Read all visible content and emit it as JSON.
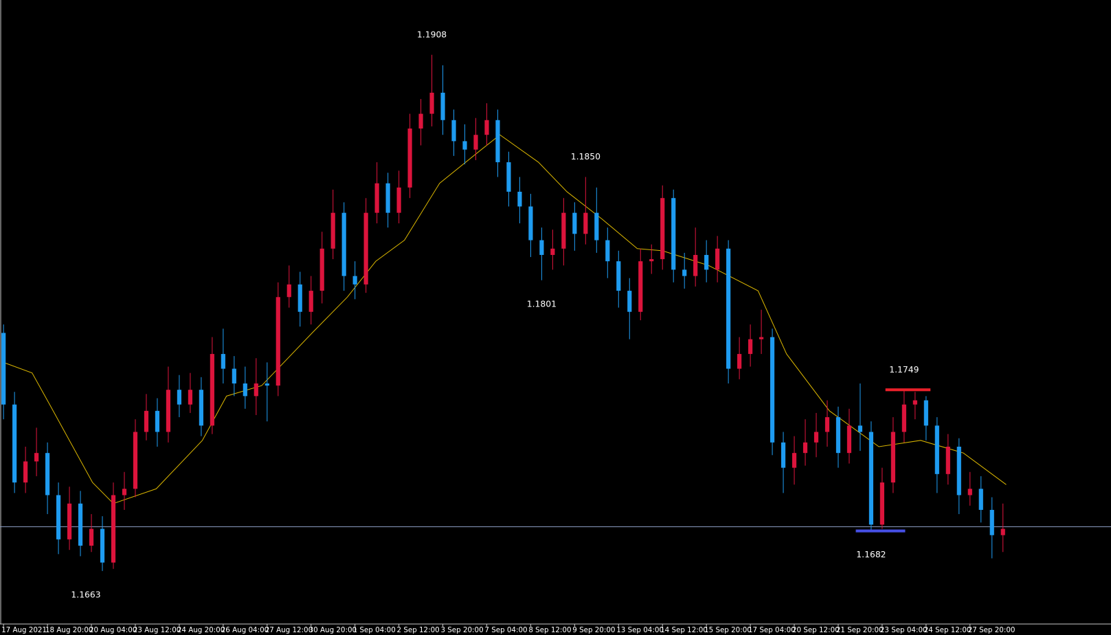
{
  "chart_data": {
    "type": "candlestick",
    "categories": [
      "17 Aug 2021",
      null,
      null,
      null,
      "18 Aug 20:00",
      null,
      null,
      null,
      "20 Aug 04:00",
      null,
      null,
      null,
      "23 Aug 12:00",
      null,
      null,
      null,
      "24 Aug 20:00",
      null,
      null,
      null,
      "26 Aug 04:00",
      null,
      null,
      null,
      "27 Aug 12:00",
      null,
      null,
      null,
      "30 Aug 20:00",
      null,
      null,
      null,
      "1 Sep 04:00",
      null,
      null,
      null,
      "2 Sep 12:00",
      null,
      null,
      null,
      "3 Sep 20:00",
      null,
      null,
      null,
      "7 Sep 04:00",
      null,
      null,
      null,
      "8 Sep 12:00",
      null,
      null,
      null,
      "9 Sep 20:00",
      null,
      null,
      null,
      "13 Sep 04:00",
      null,
      null,
      null,
      "14 Sep 12:00",
      null,
      null,
      null,
      "15 Sep 20:00",
      null,
      null,
      null,
      "17 Sep 04:00",
      null,
      null,
      null,
      "20 Sep 12:00",
      null,
      null,
      null,
      "21 Sep 20:00",
      null,
      null,
      null,
      "23 Sep 04:00",
      null,
      null,
      null,
      "24 Sep 12:00",
      null,
      null,
      null,
      "27 Sep 20:00",
      null,
      null,
      null
    ],
    "open": [
      1.1776,
      1.1742,
      1.1705,
      1.1715,
      1.1719,
      1.1699,
      1.1678,
      1.1695,
      1.1675,
      1.1683,
      1.1667,
      1.1699,
      1.1702,
      1.1729,
      1.1739,
      1.1729,
      1.1749,
      1.1742,
      1.1749,
      1.1732,
      1.1766,
      1.1759,
      1.1752,
      1.1746,
      1.1752,
      1.1751,
      1.1793,
      1.1799,
      1.1786,
      1.1796,
      1.1816,
      1.1833,
      1.1803,
      1.1799,
      1.1833,
      1.1847,
      1.1833,
      1.1845,
      1.1873,
      1.188,
      1.189,
      1.1877,
      1.1867,
      1.1863,
      1.187,
      1.1877,
      1.1857,
      1.1843,
      1.1836,
      1.182,
      1.1813,
      1.1816,
      1.1833,
      1.1823,
      1.1833,
      1.182,
      1.181,
      1.1796,
      1.1786,
      1.181,
      1.1811,
      1.184,
      1.1806,
      1.1803,
      1.1813,
      1.1806,
      1.1816,
      1.1759,
      1.1766,
      1.1773,
      1.1774,
      1.1724,
      1.1712,
      1.1719,
      1.1724,
      1.1729,
      1.1736,
      1.1719,
      1.1732,
      1.1729,
      1.1685,
      1.1705,
      1.1729,
      1.1742,
      1.1744,
      1.1732,
      1.1709,
      1.1722,
      1.1699,
      1.1702,
      1.1692,
      1.168
    ],
    "high": [
      1.178,
      1.1748,
      1.1722,
      1.1731,
      1.1724,
      1.1705,
      1.1703,
      1.1701,
      1.169,
      1.1689,
      1.1705,
      1.171,
      1.1735,
      1.1747,
      1.1745,
      1.176,
      1.1756,
      1.1757,
      1.1755,
      1.1774,
      1.1778,
      1.1765,
      1.176,
      1.1764,
      1.1762,
      1.18,
      1.1808,
      1.1805,
      1.1803,
      1.1824,
      1.1844,
      1.1838,
      1.181,
      1.184,
      1.1857,
      1.1852,
      1.1853,
      1.188,
      1.1887,
      1.1908,
      1.1903,
      1.1882,
      1.1875,
      1.1878,
      1.1885,
      1.1882,
      1.1862,
      1.185,
      1.1842,
      1.1826,
      1.1825,
      1.184,
      1.1838,
      1.185,
      1.1845,
      1.1826,
      1.1815,
      1.1802,
      1.1816,
      1.1818,
      1.1846,
      1.1844,
      1.1814,
      1.1826,
      1.182,
      1.1822,
      1.182,
      1.1774,
      1.178,
      1.1787,
      1.1778,
      1.1729,
      1.1727,
      1.1735,
      1.1738,
      1.1744,
      1.1741,
      1.174,
      1.1752,
      1.1734,
      1.1712,
      1.1736,
      1.1749,
      1.1748,
      1.1746,
      1.1736,
      1.1728,
      1.1726,
      1.171,
      1.1708,
      1.1698,
      1.1695
    ],
    "low": [
      1.1735,
      1.17,
      1.17,
      1.1708,
      1.169,
      1.1671,
      1.1673,
      1.167,
      1.1672,
      1.1663,
      1.1664,
      1.1692,
      1.1698,
      1.1725,
      1.1722,
      1.1724,
      1.1736,
      1.1738,
      1.1727,
      1.1728,
      1.1752,
      1.1746,
      1.174,
      1.1737,
      1.1734,
      1.1746,
      1.1788,
      1.1779,
      1.178,
      1.179,
      1.1811,
      1.1796,
      1.1792,
      1.1795,
      1.1828,
      1.1826,
      1.1828,
      1.184,
      1.1865,
      1.1874,
      1.187,
      1.186,
      1.1856,
      1.1858,
      1.1865,
      1.185,
      1.1836,
      1.1828,
      1.1812,
      1.1801,
      1.1806,
      1.1808,
      1.1815,
      1.1818,
      1.1814,
      1.1802,
      1.1788,
      1.1773,
      1.1782,
      1.1804,
      1.1806,
      1.18,
      1.1797,
      1.1798,
      1.18,
      1.18,
      1.1752,
      1.1754,
      1.176,
      1.1766,
      1.1718,
      1.17,
      1.1704,
      1.1713,
      1.1717,
      1.1722,
      1.1712,
      1.1714,
      1.172,
      1.1682,
      1.1683,
      1.17,
      1.1724,
      1.1735,
      1.1725,
      1.17,
      1.1704,
      1.169,
      1.1694,
      1.1686,
      1.1669,
      1.1672
    ],
    "close": [
      1.1742,
      1.1705,
      1.1715,
      1.1719,
      1.1699,
      1.1678,
      1.1695,
      1.1675,
      1.1683,
      1.1667,
      1.1699,
      1.1702,
      1.1729,
      1.1739,
      1.1729,
      1.1749,
      1.1742,
      1.1749,
      1.1732,
      1.1766,
      1.1759,
      1.1752,
      1.1746,
      1.1752,
      1.1751,
      1.1793,
      1.1799,
      1.1786,
      1.1796,
      1.1816,
      1.1833,
      1.1803,
      1.1799,
      1.1833,
      1.1847,
      1.1833,
      1.1845,
      1.1873,
      1.188,
      1.189,
      1.1877,
      1.1867,
      1.1863,
      1.187,
      1.1877,
      1.1857,
      1.1843,
      1.1836,
      1.182,
      1.1813,
      1.1816,
      1.1833,
      1.1823,
      1.1833,
      1.182,
      1.181,
      1.1796,
      1.1786,
      1.181,
      1.1811,
      1.184,
      1.1806,
      1.1803,
      1.1813,
      1.1806,
      1.1816,
      1.1759,
      1.1766,
      1.1773,
      1.1774,
      1.1724,
      1.1712,
      1.1719,
      1.1724,
      1.1729,
      1.1736,
      1.1719,
      1.1732,
      1.1729,
      1.1685,
      1.1705,
      1.1729,
      1.1742,
      1.1744,
      1.1732,
      1.1709,
      1.1722,
      1.1699,
      1.1702,
      1.1692,
      1.168,
      1.1683
    ],
    "up_color": "#dc143c",
    "down_color": "#1e9bf0",
    "ylim": [
      1.1638,
      1.1934
    ],
    "moving_average": {
      "color": "#d8b400",
      "x": [
        0,
        2.6,
        4.2,
        8.1,
        10,
        13.9,
        18.1,
        20.3,
        23.5,
        28.1,
        31.3,
        33.9,
        36.5,
        39.7,
        43.5,
        45.2,
        48.7,
        51.3,
        54.5,
        57.7,
        60,
        64.2,
        68.7,
        71.3,
        75.2,
        79.7,
        83.5,
        87.4,
        88.7,
        91.3
      ],
      "values": [
        1.1762,
        1.1757,
        1.1742,
        1.1705,
        1.1695,
        1.1702,
        1.1725,
        1.1746,
        1.1751,
        1.1776,
        1.1793,
        1.181,
        1.182,
        1.1847,
        1.1863,
        1.187,
        1.1857,
        1.1843,
        1.183,
        1.1816,
        1.1815,
        1.1808,
        1.1796,
        1.1766,
        1.1739,
        1.1722,
        1.1725,
        1.1719,
        1.1714,
        1.1704
      ]
    },
    "price_line": {
      "value": 1.1684,
      "color": "#8a9cc0"
    },
    "levels": [
      {
        "value": 1.1749,
        "color": "#e8202a",
        "x": [
          80.3,
          84.4
        ]
      },
      {
        "value": 1.1682,
        "color": "#4650e6",
        "x": [
          77.6,
          82.1
        ]
      }
    ],
    "annotations": [
      {
        "label": "1.1908",
        "value": 1.1908,
        "x": 39
      },
      {
        "label": "1.1850",
        "value": 1.185,
        "x": 53
      },
      {
        "label": "1.1801",
        "value": 1.1801,
        "x": 49
      },
      {
        "label": "1.1749",
        "value": 1.1749,
        "x": 82
      },
      {
        "label": "1.1682",
        "value": 1.1682,
        "x": 79
      },
      {
        "label": "1.1663",
        "value": 1.1663,
        "x": 7.5
      }
    ]
  }
}
